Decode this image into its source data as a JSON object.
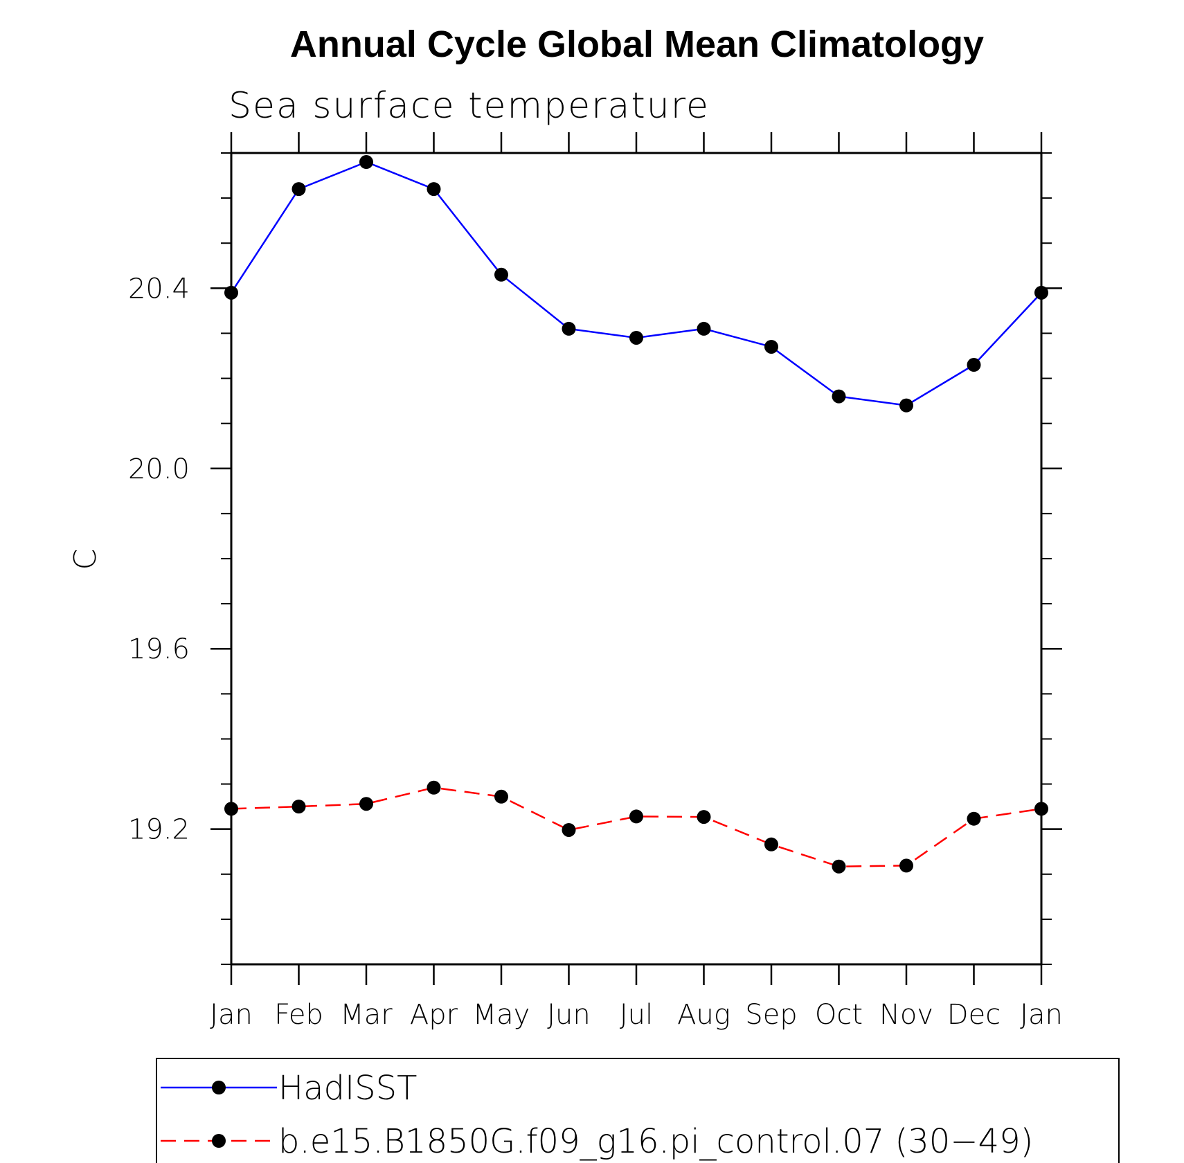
{
  "chart_data": {
    "type": "line",
    "title": "Annual Cycle Global Mean Climatology",
    "subtitle": "Sea surface temperature",
    "ylabel": "C",
    "xlabel": "",
    "categories": [
      "Jan",
      "Feb",
      "Mar",
      "Apr",
      "May",
      "Jun",
      "Jul",
      "Aug",
      "Sep",
      "Oct",
      "Nov",
      "Dec",
      "Jan"
    ],
    "ylim": [
      18.9,
      20.7
    ],
    "yticks": [
      "20.4",
      "20.0",
      "19.6",
      "19.2"
    ],
    "ytick_values": [
      20.4,
      20.0,
      19.6,
      19.2
    ],
    "yminor_step": 0.1,
    "grid": false,
    "legend_position": "bottom",
    "series": [
      {
        "name": "HadISST",
        "color": "#0000ff",
        "dash": "solid",
        "marker": "filled-circle",
        "values": [
          20.39,
          20.62,
          20.68,
          20.62,
          20.43,
          20.31,
          20.29,
          20.31,
          20.27,
          20.16,
          20.14,
          20.23,
          20.39
        ]
      },
      {
        "name": "b.e15.B1850G.f09_g16.pi_control.07 (30−49)",
        "color": "#ff0000",
        "dash": "dashed",
        "marker": "filled-circle",
        "values": [
          19.245,
          19.25,
          19.256,
          19.292,
          19.272,
          19.198,
          19.228,
          19.227,
          19.166,
          19.117,
          19.119,
          19.223,
          19.245
        ]
      }
    ]
  }
}
